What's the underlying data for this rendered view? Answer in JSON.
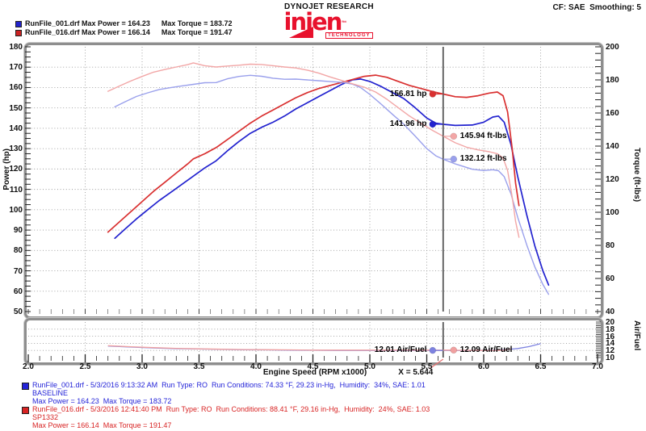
{
  "header": {
    "brand_top": "DYNOJET RESEARCH",
    "logo": {
      "word": "injen",
      "sub": "TECHNOLOGY",
      "tm": "™"
    },
    "settings": "CF: SAE  Smoothing: 5",
    "legend_rows": [
      {
        "left": "RunFile_001.drf Max Power = 164.23",
        "right": "Max Torque = 183.72",
        "color": "#2222cc"
      },
      {
        "left": "RunFile_016.drf Max Power = 166.14",
        "right": "Max Torque = 191.47",
        "color": "#cc2222"
      }
    ]
  },
  "axes": {
    "left_label": "Power (hp)",
    "right_label": "Torque (ft-lbs)",
    "af_label": "Air/Fuel",
    "x_label": "Engine Speed (RPM x1000)",
    "cursor_label": "X = 5.644"
  },
  "readouts": {
    "hp_red": {
      "text": "156.81 hp",
      "value": 156.81
    },
    "hp_blue": {
      "text": "141.96 hp",
      "value": 141.96
    },
    "tq_red": {
      "text": "145.94 ft-lbs",
      "value": 145.94
    },
    "tq_blue": {
      "text": "132.12 ft-lbs",
      "value": 132.12
    },
    "af_blue": {
      "text": "12.01 Air/Fuel",
      "value": 12.01
    },
    "af_red": {
      "text": "12.09 Air/Fuel",
      "value": 12.09
    }
  },
  "chart_data": {
    "type": "line",
    "cursor_x": 5.644,
    "main": {
      "x_range": [
        2.0,
        7.0
      ],
      "x_ticks": [
        "2.0",
        "2.5",
        "3.0",
        "3.5",
        "4.0",
        "4.5",
        "5.0",
        "5.5",
        "6.0",
        "6.5",
        "7.0"
      ],
      "left_axis": {
        "label": "Power (hp)",
        "range": [
          50,
          180
        ],
        "ticks": [
          "180",
          "170",
          "160",
          "150",
          "140",
          "130",
          "120",
          "110",
          "100",
          "90",
          "80",
          "70",
          "60",
          "50"
        ]
      },
      "right_axis": {
        "label": "Torque (ft-lbs)",
        "range": [
          40,
          200
        ],
        "ticks": [
          "200",
          "180",
          "160",
          "140",
          "120",
          "100",
          "80",
          "60",
          "40"
        ]
      },
      "series": [
        {
          "name": "power-baseline",
          "run": "RunFile_001.drf BASELINE",
          "axis": "left",
          "color": "#2222cf",
          "width": 1.7,
          "points": [
            [
              2.76,
              86
            ],
            [
              2.85,
              90.5
            ],
            [
              2.95,
              95.5
            ],
            [
              3.05,
              100
            ],
            [
              3.15,
              104.5
            ],
            [
              3.25,
              108.5
            ],
            [
              3.35,
              112.5
            ],
            [
              3.45,
              116.5
            ],
            [
              3.55,
              120.5
            ],
            [
              3.65,
              124
            ],
            [
              3.75,
              129
            ],
            [
              3.85,
              133.5
            ],
            [
              3.95,
              137.5
            ],
            [
              4.05,
              140.5
            ],
            [
              4.15,
              143
            ],
            [
              4.25,
              146
            ],
            [
              4.35,
              149.5
            ],
            [
              4.45,
              152.5
            ],
            [
              4.55,
              155.5
            ],
            [
              4.65,
              158.5
            ],
            [
              4.75,
              161.5
            ],
            [
              4.85,
              163.8
            ],
            [
              4.92,
              164.2
            ],
            [
              5.0,
              163
            ],
            [
              5.1,
              160.5
            ],
            [
              5.2,
              157.5
            ],
            [
              5.3,
              154.5
            ],
            [
              5.4,
              150
            ],
            [
              5.5,
              145
            ],
            [
              5.58,
              142.5
            ],
            [
              5.644,
              141.96
            ],
            [
              5.75,
              141.4
            ],
            [
              5.9,
              141.6
            ],
            [
              6.0,
              143
            ],
            [
              6.08,
              145.5
            ],
            [
              6.13,
              146
            ],
            [
              6.18,
              143
            ],
            [
              6.24,
              132
            ],
            [
              6.3,
              116
            ],
            [
              6.38,
              97
            ],
            [
              6.45,
              82
            ],
            [
              6.52,
              70
            ],
            [
              6.57,
              63
            ]
          ]
        },
        {
          "name": "power-sp1332",
          "run": "RunFile_016.drf SP1332",
          "axis": "left",
          "color": "#d93030",
          "width": 1.7,
          "points": [
            [
              2.7,
              89
            ],
            [
              2.8,
              94
            ],
            [
              2.9,
              99
            ],
            [
              3.0,
              104
            ],
            [
              3.1,
              109
            ],
            [
              3.2,
              113.5
            ],
            [
              3.3,
              118
            ],
            [
              3.4,
              122.5
            ],
            [
              3.45,
              125
            ],
            [
              3.55,
              127.5
            ],
            [
              3.65,
              130.5
            ],
            [
              3.75,
              134.5
            ],
            [
              3.85,
              138.5
            ],
            [
              3.95,
              142.5
            ],
            [
              4.05,
              146
            ],
            [
              4.15,
              149
            ],
            [
              4.25,
              152
            ],
            [
              4.35,
              155
            ],
            [
              4.45,
              157.5
            ],
            [
              4.55,
              159.5
            ],
            [
              4.65,
              161
            ],
            [
              4.75,
              162.5
            ],
            [
              4.85,
              164
            ],
            [
              4.95,
              165.5
            ],
            [
              5.05,
              166.1
            ],
            [
              5.15,
              165
            ],
            [
              5.25,
              163
            ],
            [
              5.35,
              161
            ],
            [
              5.45,
              159.5
            ],
            [
              5.55,
              158
            ],
            [
              5.644,
              156.81
            ],
            [
              5.75,
              155.5
            ],
            [
              5.85,
              155.2
            ],
            [
              5.95,
              156
            ],
            [
              6.05,
              157.3
            ],
            [
              6.12,
              157.8
            ],
            [
              6.17,
              156
            ],
            [
              6.21,
              148
            ],
            [
              6.25,
              130
            ],
            [
              6.28,
              113
            ],
            [
              6.31,
              102
            ]
          ]
        },
        {
          "name": "torque-baseline",
          "run": "RunFile_001.drf BASELINE",
          "axis": "right",
          "color": "#9aa0ec",
          "width": 1.4,
          "points": [
            [
              2.76,
              163.7
            ],
            [
              2.85,
              166.8
            ],
            [
              2.95,
              170.0
            ],
            [
              3.05,
              172.2
            ],
            [
              3.15,
              174.2
            ],
            [
              3.25,
              175.3
            ],
            [
              3.35,
              176.4
            ],
            [
              3.45,
              177.3
            ],
            [
              3.55,
              178.3
            ],
            [
              3.65,
              178.4
            ],
            [
              3.75,
              180.7
            ],
            [
              3.85,
              182.1
            ],
            [
              3.95,
              182.8
            ],
            [
              4.05,
              182.2
            ],
            [
              4.15,
              181.0
            ],
            [
              4.25,
              180.4
            ],
            [
              4.35,
              180.5
            ],
            [
              4.45,
              180.0
            ],
            [
              4.55,
              179.5
            ],
            [
              4.65,
              179.0
            ],
            [
              4.75,
              178.6
            ],
            [
              4.85,
              177.4
            ],
            [
              4.92,
              175.3
            ],
            [
              5.0,
              171.2
            ],
            [
              5.1,
              165.3
            ],
            [
              5.2,
              159.1
            ],
            [
              5.3,
              153.1
            ],
            [
              5.4,
              145.9
            ],
            [
              5.5,
              138.5
            ],
            [
              5.58,
              134.1
            ],
            [
              5.644,
              132.12
            ],
            [
              5.75,
              129.2
            ],
            [
              5.9,
              126.0
            ],
            [
              6.0,
              125.2
            ],
            [
              6.08,
              125.7
            ],
            [
              6.13,
              125.1
            ],
            [
              6.18,
              121.5
            ],
            [
              6.24,
              111.1
            ],
            [
              6.3,
              96.7
            ],
            [
              6.38,
              79.9
            ],
            [
              6.45,
              66.8
            ],
            [
              6.52,
              56.4
            ],
            [
              6.57,
              50.4
            ]
          ]
        },
        {
          "name": "torque-sp1332",
          "run": "RunFile_016.drf SP1332",
          "axis": "right",
          "color": "#f2a6a6",
          "width": 1.4,
          "points": [
            [
              2.7,
              173.1
            ],
            [
              2.8,
              176.3
            ],
            [
              2.9,
              179.3
            ],
            [
              3.0,
              182.1
            ],
            [
              3.1,
              184.7
            ],
            [
              3.2,
              186.3
            ],
            [
              3.3,
              187.8
            ],
            [
              3.4,
              189.2
            ],
            [
              3.45,
              190.3
            ],
            [
              3.55,
              188.6
            ],
            [
              3.65,
              187.8
            ],
            [
              3.75,
              188.4
            ],
            [
              3.85,
              188.9
            ],
            [
              3.95,
              189.5
            ],
            [
              4.05,
              189.3
            ],
            [
              4.15,
              188.6
            ],
            [
              4.25,
              187.8
            ],
            [
              4.35,
              187.2
            ],
            [
              4.45,
              185.9
            ],
            [
              4.55,
              184.1
            ],
            [
              4.65,
              181.8
            ],
            [
              4.75,
              179.7
            ],
            [
              4.85,
              177.6
            ],
            [
              4.95,
              175.6
            ],
            [
              5.05,
              172.7
            ],
            [
              5.15,
              168.3
            ],
            [
              5.25,
              163.1
            ],
            [
              5.35,
              158.1
            ],
            [
              5.45,
              153.7
            ],
            [
              5.55,
              149.5
            ],
            [
              5.644,
              145.94
            ],
            [
              5.75,
              142.0
            ],
            [
              5.85,
              139.3
            ],
            [
              5.95,
              137.7
            ],
            [
              6.05,
              136.6
            ],
            [
              6.12,
              135.4
            ],
            [
              6.17,
              132.8
            ],
            [
              6.21,
              125.2
            ],
            [
              6.25,
              109.2
            ],
            [
              6.28,
              94.5
            ],
            [
              6.31,
              84.9
            ]
          ]
        }
      ]
    },
    "af": {
      "label": "Air/Fuel",
      "range": [
        10,
        20
      ],
      "ticks": [
        "20",
        "18",
        "16",
        "14",
        "12",
        "10"
      ],
      "series": [
        {
          "name": "af-baseline",
          "run": "RunFile_001.drf BASELINE",
          "color": "#7d82e0",
          "width": 1.3,
          "points": [
            [
              2.7,
              13.25
            ],
            [
              2.9,
              12.95
            ],
            [
              3.1,
              12.7
            ],
            [
              3.3,
              12.5
            ],
            [
              3.5,
              12.4
            ],
            [
              3.7,
              12.3
            ],
            [
              3.9,
              12.2
            ],
            [
              4.1,
              12.15
            ],
            [
              4.3,
              12.1
            ],
            [
              4.5,
              12.05
            ],
            [
              4.7,
              12.0
            ],
            [
              5.0,
              12.0
            ],
            [
              5.3,
              12.0
            ],
            [
              5.5,
              12.0
            ],
            [
              5.644,
              12.01
            ],
            [
              5.8,
              12.0
            ],
            [
              6.0,
              12.05
            ],
            [
              6.1,
              12.1
            ],
            [
              6.2,
              12.25
            ],
            [
              6.3,
              12.55
            ],
            [
              6.4,
              13.1
            ],
            [
              6.5,
              13.9
            ]
          ]
        },
        {
          "name": "af-sp1332",
          "run": "RunFile_016.drf SP1332",
          "color": "#f0a0a0",
          "width": 1.3,
          "points": [
            [
              2.7,
              13.35
            ],
            [
              2.9,
              13.05
            ],
            [
              3.1,
              12.8
            ],
            [
              3.3,
              12.6
            ],
            [
              3.5,
              12.45
            ],
            [
              3.7,
              12.35
            ],
            [
              3.9,
              12.25
            ],
            [
              4.1,
              12.2
            ],
            [
              4.3,
              12.15
            ],
            [
              4.5,
              12.1
            ],
            [
              4.7,
              12.1
            ],
            [
              5.0,
              12.1
            ],
            [
              5.3,
              12.1
            ],
            [
              5.644,
              12.09
            ],
            [
              5.8,
              12.05
            ],
            [
              6.0,
              12.0
            ],
            [
              6.1,
              12.0
            ],
            [
              6.18,
              12.1
            ],
            [
              6.24,
              12.4
            ]
          ]
        }
      ]
    }
  },
  "footer": {
    "runs": [
      {
        "color": "#2424d8",
        "line1": "RunFile_001.drf - 5/3/2016 9:13:32 AM  Run Type: RO  Run Conditions: 74.33 °F, 29.23 in-Hg,  Humidity:  34%, SAE: 1.01",
        "line2": "BASELINE",
        "line3": "Max Power = 164.23  Max Torque = 183.72"
      },
      {
        "color": "#d82424",
        "line1": "RunFile_016.drf - 5/3/2016 12:41:40 PM  Run Type: RO  Run Conditions: 88.41 °F, 29.16 in-Hg,  Humidity:  24%, SAE: 1.03",
        "line2": "SP1332",
        "line3": "Max Power = 166.14  Max Torque = 191.47"
      }
    ]
  }
}
